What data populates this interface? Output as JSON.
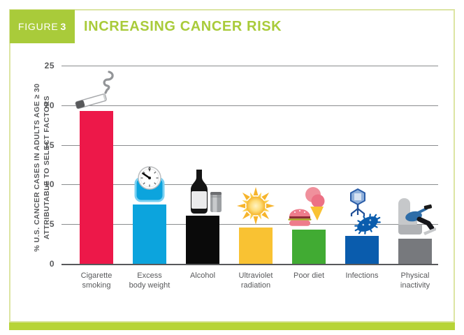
{
  "header": {
    "figure_label": "FIGURE",
    "figure_number": "3",
    "title": "INCREASING CANCER RISK"
  },
  "chart_data": {
    "type": "bar",
    "title": "INCREASING CANCER RISK",
    "ylabel_line1": "% U.S. CANCER CASES IN ADULTS AGE ≥ 30",
    "ylabel_line2": "ATTRIBUTABLE TO SELECT FACTORS",
    "xlabel": "",
    "ylim": [
      0,
      25
    ],
    "yticks": [
      0,
      5,
      10,
      15,
      20,
      25
    ],
    "grid": true,
    "legend": "none",
    "categories": [
      "Cigarette smoking",
      "Excess body weight",
      "Alcohol",
      "Ultraviolet radiation",
      "Poor diet",
      "Infections",
      "Physical inactivity"
    ],
    "category_lines": [
      [
        "Cigarette",
        "smoking"
      ],
      [
        "Excess",
        "body weight"
      ],
      [
        "Alcohol"
      ],
      [
        "Ultraviolet",
        "radiation"
      ],
      [
        "Poor diet"
      ],
      [
        "Infections"
      ],
      [
        "Physical",
        "inactivity"
      ]
    ],
    "values": [
      19.3,
      7.5,
      6.1,
      4.6,
      4.3,
      3.5,
      3.2
    ],
    "bar_colors": [
      "#ED1849",
      "#0CA4DD",
      "#0A0A0A",
      "#F9C233",
      "#41AB33",
      "#0A5CAD",
      "#77797D"
    ],
    "icons": [
      "cigarette-icon",
      "bathroom-scale-icon",
      "wine-bottle-and-can-icon",
      "sun-icon",
      "burger-and-ice-cream-icon",
      "virus-and-bacteria-icon",
      "person-in-recliner-icon"
    ]
  },
  "colors": {
    "accent_green": "#A9CB3A",
    "footer_strip_green": "#B7D437",
    "card_border_green": "#DCE5A3",
    "text_gray": "#58595B",
    "grid_gray": "#8A8C8E"
  }
}
